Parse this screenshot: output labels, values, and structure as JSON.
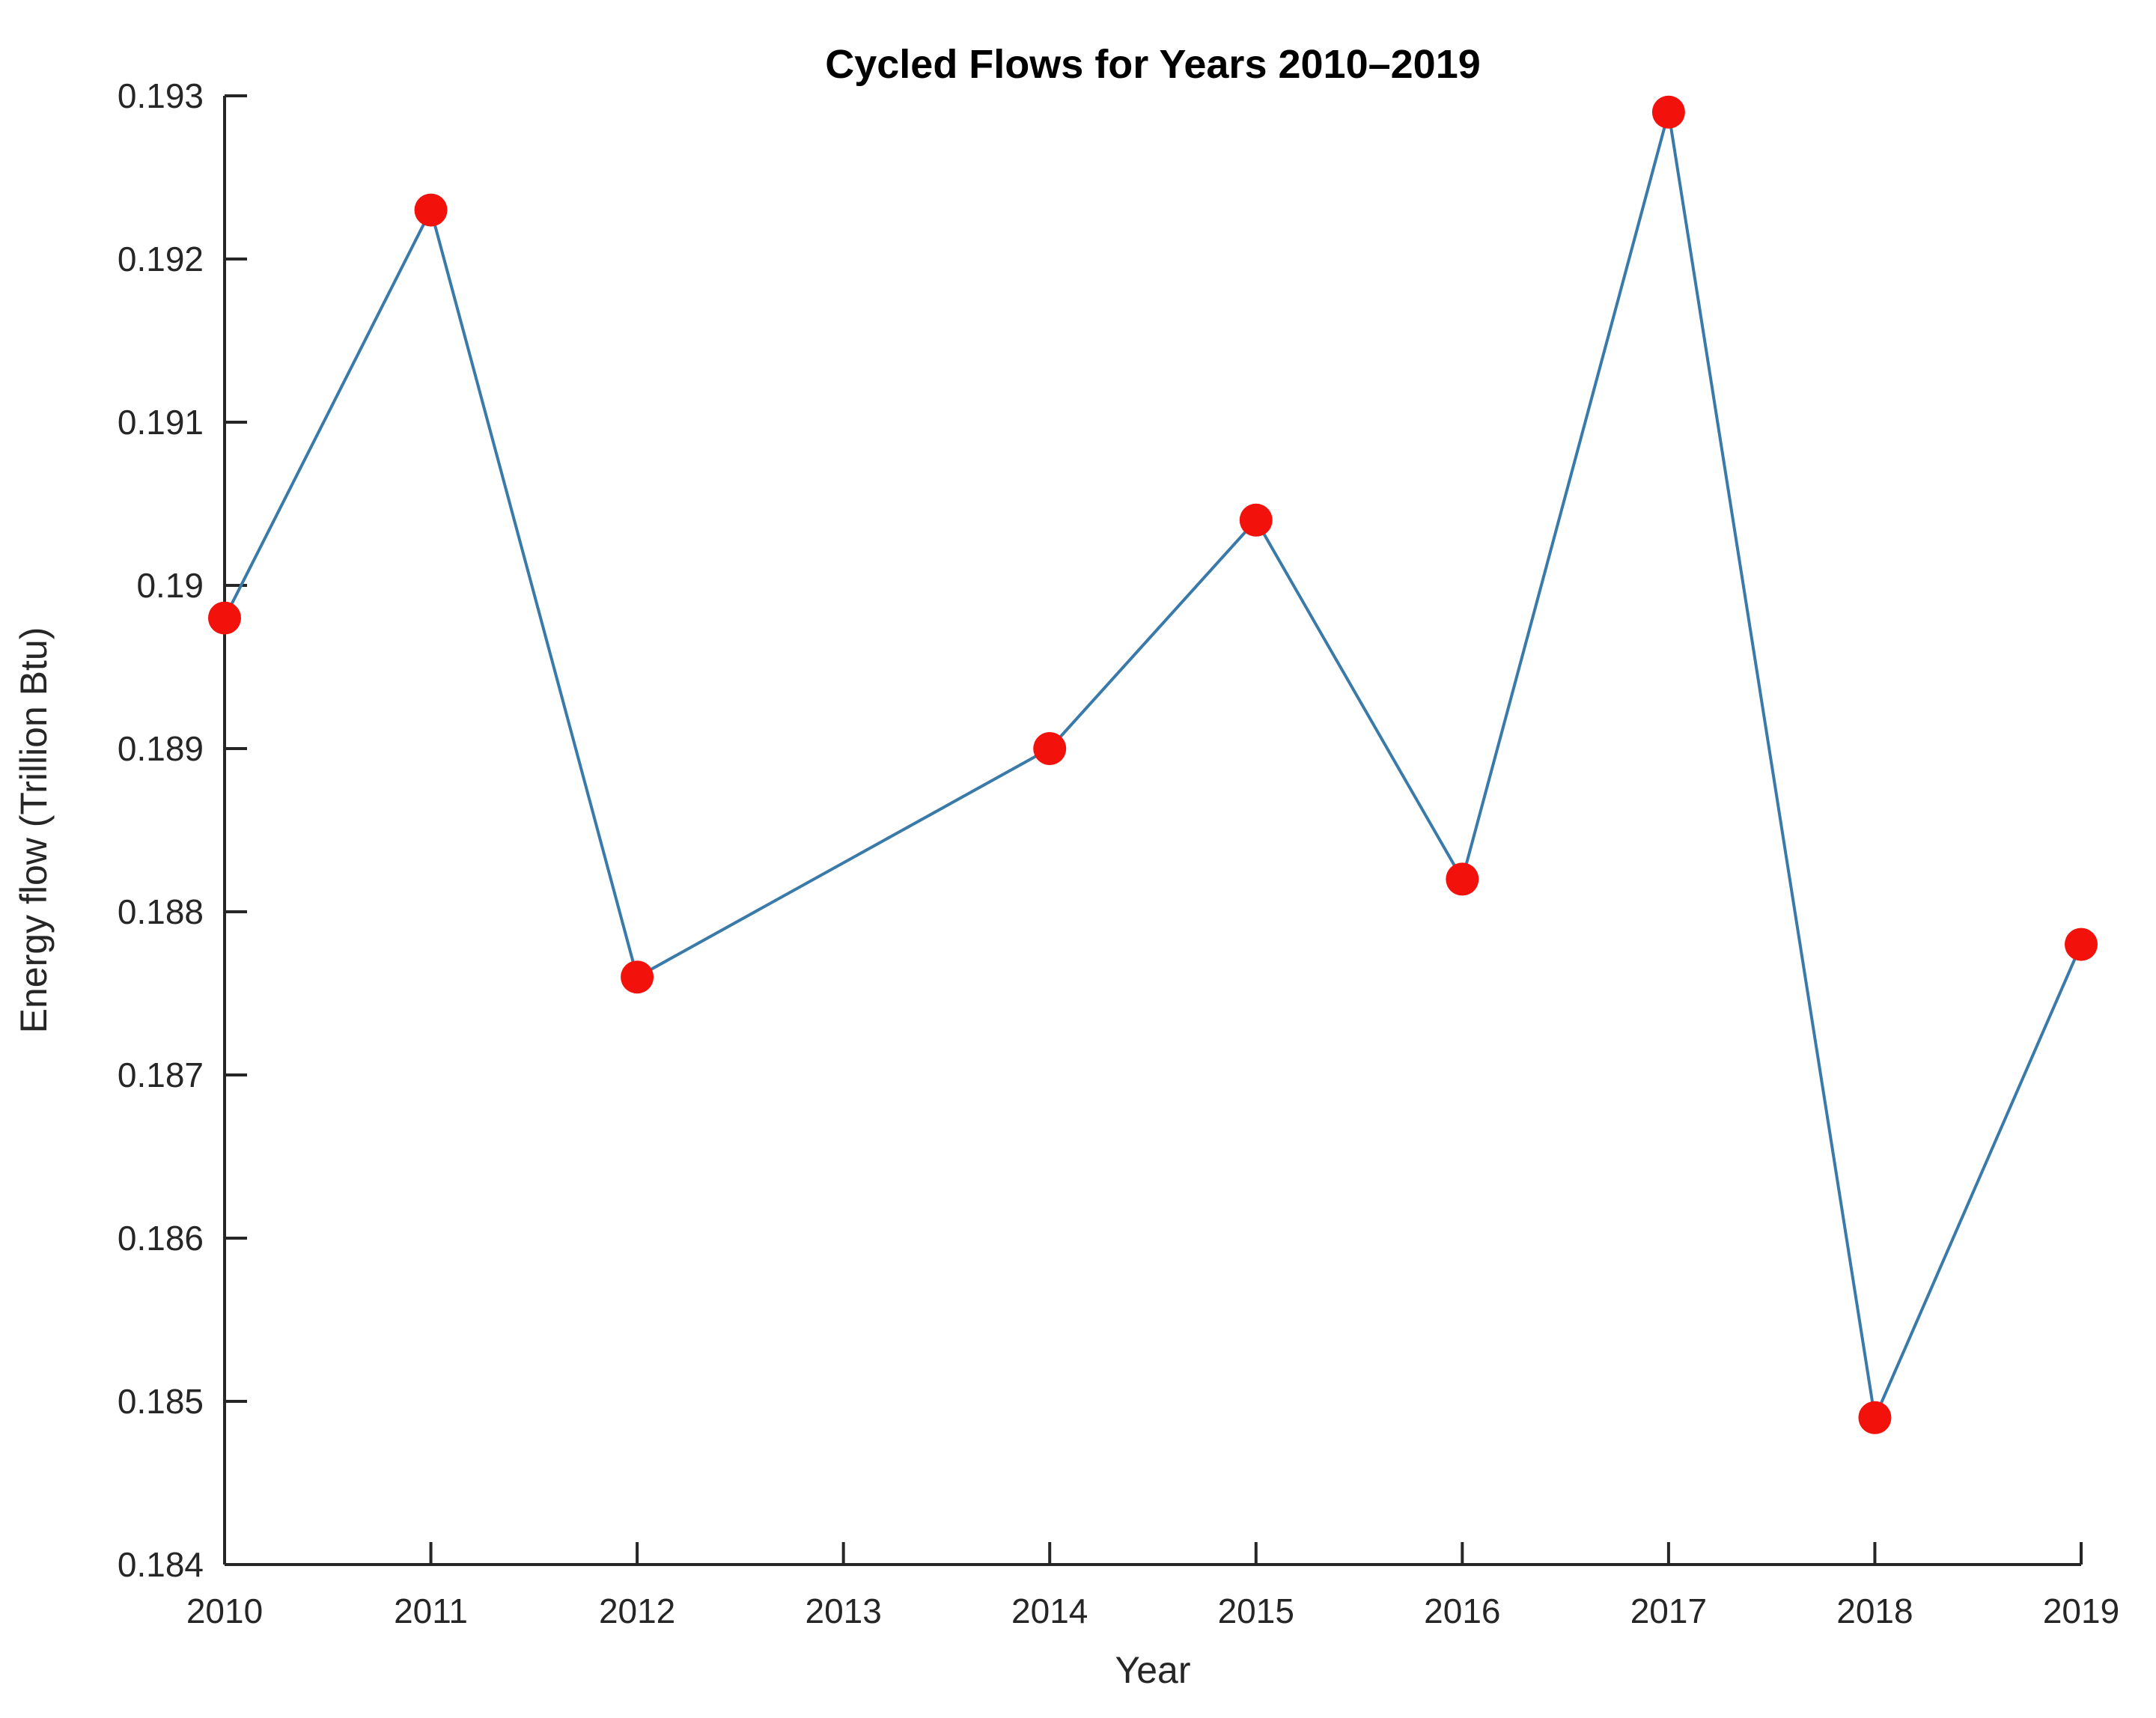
{
  "chart_data": {
    "type": "line",
    "title": "Cycled Flows for Years 2010–2019",
    "xlabel": "Year",
    "ylabel": "Energy flow (Trillion Btu)",
    "x": [
      2010,
      2011,
      2012,
      2014,
      2015,
      2016,
      2017,
      2018,
      2019
    ],
    "values": [
      0.1898,
      0.1923,
      0.1876,
      0.189,
      0.1904,
      0.1882,
      0.1929,
      0.1849,
      0.1878
    ],
    "series_name": "Energy flow",
    "xlim": [
      2010,
      2019
    ],
    "ylim": [
      0.184,
      0.193
    ],
    "xticks": [
      2010,
      2011,
      2012,
      2013,
      2014,
      2015,
      2016,
      2017,
      2018,
      2019
    ],
    "yticks": [
      {
        "value": 0.184,
        "label": "0.184"
      },
      {
        "value": 0.185,
        "label": "0.185"
      },
      {
        "value": 0.186,
        "label": "0.186"
      },
      {
        "value": 0.187,
        "label": "0.187"
      },
      {
        "value": 0.188,
        "label": "0.188"
      },
      {
        "value": 0.189,
        "label": "0.189"
      },
      {
        "value": 0.19,
        "label": "0.19"
      },
      {
        "value": 0.191,
        "label": "0.191"
      },
      {
        "value": 0.192,
        "label": "0.192"
      },
      {
        "value": 0.193,
        "label": "0.193"
      }
    ],
    "grid": false,
    "legend": "none",
    "line_color": "#3a7aa9",
    "marker_color": "#f2120b",
    "axis_color": "#262626"
  }
}
